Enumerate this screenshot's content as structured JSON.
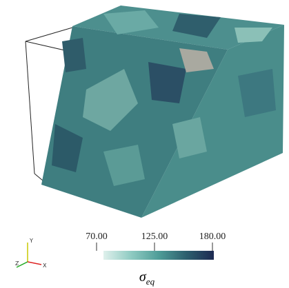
{
  "triad": {
    "y": "Y",
    "z": "Z",
    "x": "X"
  },
  "colorbar": {
    "title": "σ",
    "subscript": "eq",
    "lim": [
      70,
      180
    ],
    "ticks": [
      {
        "value": 70,
        "label": "70.00"
      },
      {
        "value": 125,
        "label": "125.00"
      },
      {
        "value": 180,
        "label": "180.00"
      }
    ],
    "colors": [
      "#dff0ec",
      "#8fcbc2",
      "#4f9d98",
      "#2d5f6e",
      "#1d2a52"
    ]
  }
}
